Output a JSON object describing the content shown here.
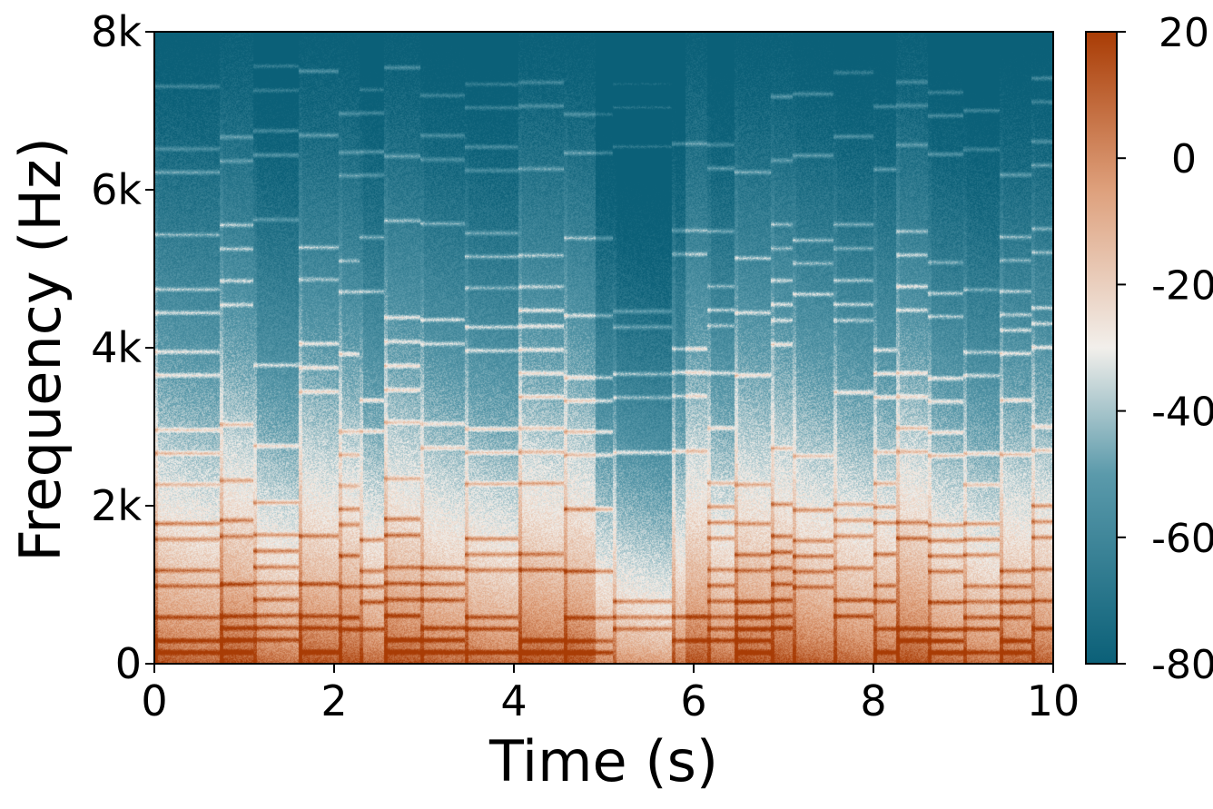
{
  "chart_data": {
    "type": "heatmap",
    "title": "",
    "xlabel": "Time (s)",
    "ylabel": "Frequency (Hz)",
    "xlim": [
      0,
      10
    ],
    "ylim": [
      0,
      8000
    ],
    "x_ticks": [
      {
        "value": 0,
        "label": "0"
      },
      {
        "value": 2,
        "label": "2"
      },
      {
        "value": 4,
        "label": "4"
      },
      {
        "value": 6,
        "label": "6"
      },
      {
        "value": 8,
        "label": "8"
      },
      {
        "value": 10,
        "label": "10"
      }
    ],
    "y_ticks": [
      {
        "value": 0,
        "label": "0"
      },
      {
        "value": 2000,
        "label": "2k"
      },
      {
        "value": 4000,
        "label": "4k"
      },
      {
        "value": 6000,
        "label": "6k"
      },
      {
        "value": 8000,
        "label": "8k"
      }
    ],
    "colorbar": {
      "range": [
        -80,
        20
      ],
      "ticks": [
        {
          "value": 20,
          "label": "20"
        },
        {
          "value": 0,
          "label": "0"
        },
        {
          "value": -20,
          "label": "-20"
        },
        {
          "value": -40,
          "label": "-40"
        },
        {
          "value": -60,
          "label": "-60"
        },
        {
          "value": -80,
          "label": "-80"
        }
      ],
      "colormap": [
        "#0b6078",
        "#5b9aab",
        "#f2efeb",
        "#dea07c",
        "#a93c05"
      ]
    },
    "grid": false,
    "note_onsets_s": [
      0.0,
      0.72,
      1.1,
      1.6,
      2.05,
      2.28,
      2.55,
      2.95,
      3.45,
      4.05,
      4.55,
      5.1,
      5.75,
      6.15,
      6.45,
      6.85,
      7.1,
      7.55,
      8.0,
      8.25,
      8.6,
      9.0,
      9.4,
      9.75
    ],
    "harmonic_bands_hz": [
      150,
      300,
      450,
      600,
      800,
      1000,
      1200,
      1400,
      1600,
      1800,
      2000,
      2300,
      2700,
      3000,
      3400,
      3700,
      4000,
      4300,
      4500,
      4800,
      5200,
      5500,
      6300,
      6600,
      7100,
      7400
    ]
  }
}
